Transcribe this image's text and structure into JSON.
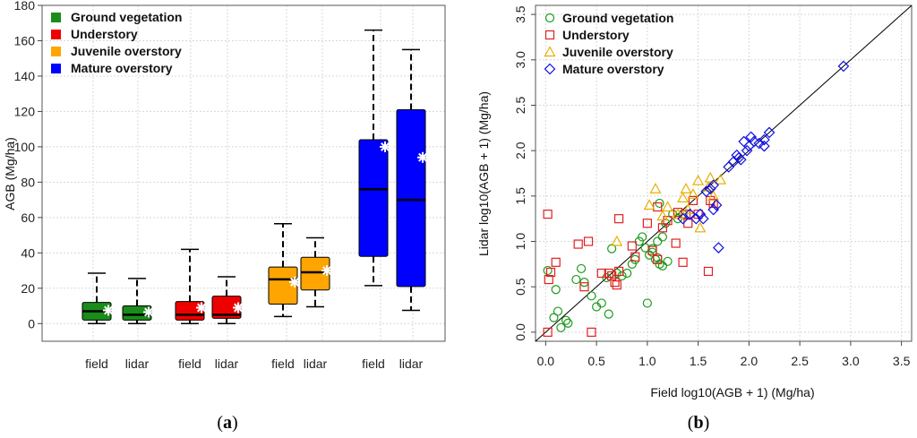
{
  "chart_data": [
    {
      "type": "box",
      "panel_label": "(a)",
      "panel_letter": "a",
      "ylabel": "AGB (Mg/ha)",
      "xlabel": "",
      "ylim": [
        -10,
        180
      ],
      "yticks": [
        0,
        20,
        40,
        60,
        80,
        100,
        120,
        140,
        160,
        180
      ],
      "grid": true,
      "legend_position": "top-left",
      "legend": [
        {
          "name": "Ground vegetation",
          "color": "#1a8c1a"
        },
        {
          "name": "Understory",
          "color": "#ee0000"
        },
        {
          "name": "Juvenile overstory",
          "color": "#ffa500"
        },
        {
          "name": "Mature overstory",
          "color": "#0000ff"
        }
      ],
      "groups": [
        {
          "name": "Ground vegetation",
          "boxes": [
            {
              "label": "field",
              "whisker_low": 0,
              "q1": 2,
              "median": 7,
              "q3": 12,
              "whisker_high": 28.5,
              "mean": 7.5
            },
            {
              "label": "lidar",
              "whisker_low": 0,
              "q1": 2,
              "median": 5,
              "q3": 10,
              "whisker_high": 25.5,
              "mean": 6.5
            }
          ]
        },
        {
          "name": "Understory",
          "boxes": [
            {
              "label": "field",
              "whisker_low": 0,
              "q1": 2,
              "median": 5,
              "q3": 12.5,
              "whisker_high": 42,
              "mean": 9
            },
            {
              "label": "lidar",
              "whisker_low": 0,
              "q1": 3,
              "median": 5,
              "q3": 15.5,
              "whisker_high": 26.5,
              "mean": 9
            }
          ]
        },
        {
          "name": "Juvenile overstory",
          "boxes": [
            {
              "label": "field",
              "whisker_low": 4,
              "q1": 11,
              "median": 25,
              "q3": 32,
              "whisker_high": 56.5,
              "mean": 23.5
            },
            {
              "label": "lidar",
              "whisker_low": 9.5,
              "q1": 19,
              "median": 29,
              "q3": 37.5,
              "whisker_high": 48.5,
              "mean": 30
            }
          ]
        },
        {
          "name": "Mature overstory",
          "boxes": [
            {
              "label": "field",
              "whisker_low": 21.5,
              "q1": 38,
              "median": 76,
              "q3": 104,
              "whisker_high": 166,
              "mean": 100
            },
            {
              "label": "lidar",
              "whisker_low": 7.5,
              "q1": 21,
              "median": 70,
              "q3": 121,
              "whisker_high": 155,
              "mean": 94
            }
          ]
        }
      ]
    },
    {
      "type": "scatter",
      "panel_label": "(b)",
      "panel_letter": "b",
      "xlabel": "Field log10(AGB + 1) (Mg/ha)",
      "ylabel": "Lidar log10(AGB + 1) (Mg/ha)",
      "xlim": [
        -0.1,
        3.6
      ],
      "ylim": [
        -0.1,
        3.6
      ],
      "xticks": [
        "0.0",
        "0.5",
        "1.0",
        "1.5",
        "2.0",
        "2.5",
        "3.0",
        "3.5"
      ],
      "yticks": [
        "0.0",
        "0.5",
        "1.0",
        "1.5",
        "2.0",
        "2.5",
        "3.0",
        "3.5"
      ],
      "grid": true,
      "one_to_one_line": true,
      "legend_position": "top-left",
      "series": [
        {
          "name": "Ground vegetation",
          "marker": "circle",
          "color": "#1a9b1a",
          "points": [
            [
              0.02,
              0.68
            ],
            [
              0.08,
              0.16
            ],
            [
              0.1,
              0.47
            ],
            [
              0.12,
              0.23
            ],
            [
              0.15,
              0.05
            ],
            [
              0.2,
              0.13
            ],
            [
              0.22,
              0.1
            ],
            [
              0.3,
              0.58
            ],
            [
              0.35,
              0.7
            ],
            [
              0.38,
              0.55
            ],
            [
              0.45,
              0.4
            ],
            [
              0.5,
              0.28
            ],
            [
              0.55,
              0.32
            ],
            [
              0.6,
              0.6
            ],
            [
              0.62,
              0.2
            ],
            [
              0.65,
              0.92
            ],
            [
              0.7,
              0.65
            ],
            [
              0.75,
              0.62
            ],
            [
              0.8,
              0.65
            ],
            [
              0.85,
              0.75
            ],
            [
              0.88,
              0.8
            ],
            [
              0.92,
              1.0
            ],
            [
              0.95,
              1.05
            ],
            [
              0.98,
              0.93
            ],
            [
              1.0,
              0.32
            ],
            [
              1.02,
              0.85
            ],
            [
              1.05,
              0.92
            ],
            [
              1.08,
              0.8
            ],
            [
              1.1,
              1.0
            ],
            [
              1.12,
              1.42
            ],
            [
              1.12,
              0.75
            ],
            [
              1.15,
              1.05
            ],
            [
              1.18,
              1.2
            ],
            [
              1.2,
              0.78
            ],
            [
              1.25,
              1.3
            ],
            [
              1.3,
              1.25
            ],
            [
              1.35,
              1.3
            ],
            [
              1.05,
              0.88
            ],
            [
              1.1,
              0.82
            ],
            [
              1.15,
              0.73
            ]
          ]
        },
        {
          "name": "Understory",
          "marker": "square",
          "color": "#e02020",
          "points": [
            [
              0.02,
              1.3
            ],
            [
              0.02,
              0.0
            ],
            [
              0.03,
              0.58
            ],
            [
              0.05,
              0.66
            ],
            [
              0.1,
              0.77
            ],
            [
              0.32,
              0.97
            ],
            [
              0.38,
              0.5
            ],
            [
              0.42,
              1.0
            ],
            [
              0.45,
              0.0
            ],
            [
              0.55,
              0.65
            ],
            [
              0.62,
              0.65
            ],
            [
              0.65,
              0.62
            ],
            [
              0.68,
              0.55
            ],
            [
              0.7,
              0.52
            ],
            [
              0.72,
              0.67
            ],
            [
              0.72,
              1.25
            ],
            [
              0.85,
              0.95
            ],
            [
              0.88,
              0.83
            ],
            [
              1.0,
              1.2
            ],
            [
              1.05,
              0.9
            ],
            [
              1.1,
              0.8
            ],
            [
              1.1,
              1.38
            ],
            [
              1.15,
              1.15
            ],
            [
              1.2,
              1.23
            ],
            [
              1.28,
              0.98
            ],
            [
              1.3,
              1.32
            ],
            [
              1.35,
              0.77
            ],
            [
              1.38,
              1.3
            ],
            [
              1.4,
              1.2
            ],
            [
              1.45,
              1.45
            ],
            [
              1.5,
              1.3
            ],
            [
              1.6,
              0.67
            ],
            [
              1.62,
              1.45
            ],
            [
              1.65,
              1.42
            ]
          ]
        },
        {
          "name": "Juvenile overstory",
          "marker": "triangle",
          "color": "#e8b000",
          "points": [
            [
              0.7,
              1.0
            ],
            [
              1.02,
              1.4
            ],
            [
              1.08,
              1.58
            ],
            [
              1.15,
              1.28
            ],
            [
              1.2,
              1.38
            ],
            [
              1.3,
              1.3
            ],
            [
              1.35,
              1.48
            ],
            [
              1.38,
              1.58
            ],
            [
              1.4,
              1.35
            ],
            [
              1.45,
              1.52
            ],
            [
              1.5,
              1.67
            ],
            [
              1.52,
              1.15
            ],
            [
              1.6,
              1.6
            ],
            [
              1.62,
              1.7
            ],
            [
              1.65,
              1.5
            ],
            [
              1.72,
              1.68
            ]
          ]
        },
        {
          "name": "Mature overstory",
          "marker": "diamond",
          "color": "#1010e0",
          "points": [
            [
              1.35,
              1.25
            ],
            [
              1.42,
              1.3
            ],
            [
              1.48,
              1.25
            ],
            [
              1.52,
              1.3
            ],
            [
              1.55,
              1.25
            ],
            [
              1.58,
              1.55
            ],
            [
              1.62,
              1.58
            ],
            [
              1.65,
              1.35
            ],
            [
              1.68,
              1.4
            ],
            [
              1.7,
              0.93
            ],
            [
              1.65,
              1.62
            ],
            [
              1.8,
              1.82
            ],
            [
              1.85,
              1.88
            ],
            [
              1.88,
              1.95
            ],
            [
              1.92,
              1.9
            ],
            [
              1.95,
              2.1
            ],
            [
              1.98,
              2.0
            ],
            [
              2.0,
              2.05
            ],
            [
              2.02,
              2.15
            ],
            [
              2.05,
              2.1
            ],
            [
              2.1,
              2.08
            ],
            [
              2.15,
              2.12
            ],
            [
              2.2,
              2.2
            ],
            [
              2.15,
              2.05
            ],
            [
              1.9,
              1.92
            ],
            [
              2.93,
              2.93
            ]
          ]
        }
      ]
    }
  ]
}
